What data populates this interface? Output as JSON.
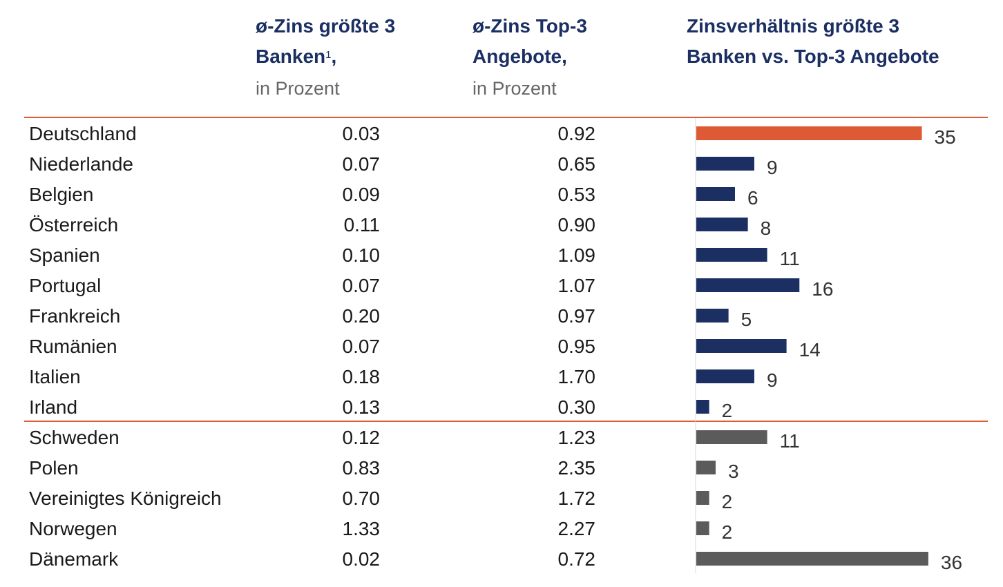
{
  "headers": {
    "col1_title_line1": "ø-Zins größte 3",
    "col1_title_line2": "Banken",
    "col1_footnote": "1",
    "col1_comma": ",",
    "col1_unit": "in Prozent",
    "col2_title_line1": "ø-Zins Top-3",
    "col2_title_line2": "Angebote,",
    "col2_unit": "in Prozent",
    "col3_title_line1": "Zinsverhältnis größte 3",
    "col3_title_line2": "Banken vs. Top-3 Angebote"
  },
  "colors": {
    "highlight": "#dd5a35",
    "euro": "#1b2f63",
    "non_euro": "#5b5b5b",
    "separator": "#dd5a35"
  },
  "rows": [
    {
      "country": "Deutschland",
      "v1": "0.03",
      "v2": "0.92",
      "ratio": 35,
      "group": "highlight"
    },
    {
      "country": "Niederlande",
      "v1": "0.07",
      "v2": "0.65",
      "ratio": 9,
      "group": "euro"
    },
    {
      "country": "Belgien",
      "v1": "0.09",
      "v2": "0.53",
      "ratio": 6,
      "group": "euro"
    },
    {
      "country": "Österreich",
      "v1": "0.11",
      "v2": "0.90",
      "ratio": 8,
      "group": "euro"
    },
    {
      "country": "Spanien",
      "v1": "0.10",
      "v2": "1.09",
      "ratio": 11,
      "group": "euro"
    },
    {
      "country": "Portugal",
      "v1": "0.07",
      "v2": "1.07",
      "ratio": 16,
      "group": "euro"
    },
    {
      "country": "Frankreich",
      "v1": "0.20",
      "v2": "0.97",
      "ratio": 5,
      "group": "euro"
    },
    {
      "country": "Rumänien",
      "v1": "0.07",
      "v2": "0.95",
      "ratio": 14,
      "group": "euro"
    },
    {
      "country": "Italien",
      "v1": "0.18",
      "v2": "1.70",
      "ratio": 9,
      "group": "euro"
    },
    {
      "country": "Irland",
      "v1": "0.13",
      "v2": "0.30",
      "ratio": 2,
      "group": "euro"
    },
    {
      "country": "Schweden",
      "v1": "0.12",
      "v2": "1.23",
      "ratio": 11,
      "group": "non_euro"
    },
    {
      "country": "Polen",
      "v1": "0.83",
      "v2": "2.35",
      "ratio": 3,
      "group": "non_euro"
    },
    {
      "country": "Vereinigtes Königreich",
      "v1": "0.70",
      "v2": "1.72",
      "ratio": 2,
      "group": "non_euro"
    },
    {
      "country": "Norwegen",
      "v1": "1.33",
      "v2": "2.27",
      "ratio": 2,
      "group": "non_euro"
    },
    {
      "country": "Dänemark",
      "v1": "0.02",
      "v2": "0.72",
      "ratio": 36,
      "group": "non_euro"
    }
  ],
  "chart_data": {
    "type": "bar",
    "orientation": "horizontal",
    "title": "Zinsverhältnis größte 3 Banken vs. Top-3 Angebote",
    "categories": [
      "Deutschland",
      "Niederlande",
      "Belgien",
      "Österreich",
      "Spanien",
      "Portugal",
      "Frankreich",
      "Rumänien",
      "Italien",
      "Irland",
      "Schweden",
      "Polen",
      "Vereinigtes Königreich",
      "Norwegen",
      "Dänemark"
    ],
    "values": [
      35,
      9,
      6,
      8,
      11,
      16,
      5,
      14,
      9,
      2,
      11,
      3,
      2,
      2,
      36
    ],
    "data_labels": true,
    "grid": false,
    "xlim": [
      0,
      36
    ]
  }
}
